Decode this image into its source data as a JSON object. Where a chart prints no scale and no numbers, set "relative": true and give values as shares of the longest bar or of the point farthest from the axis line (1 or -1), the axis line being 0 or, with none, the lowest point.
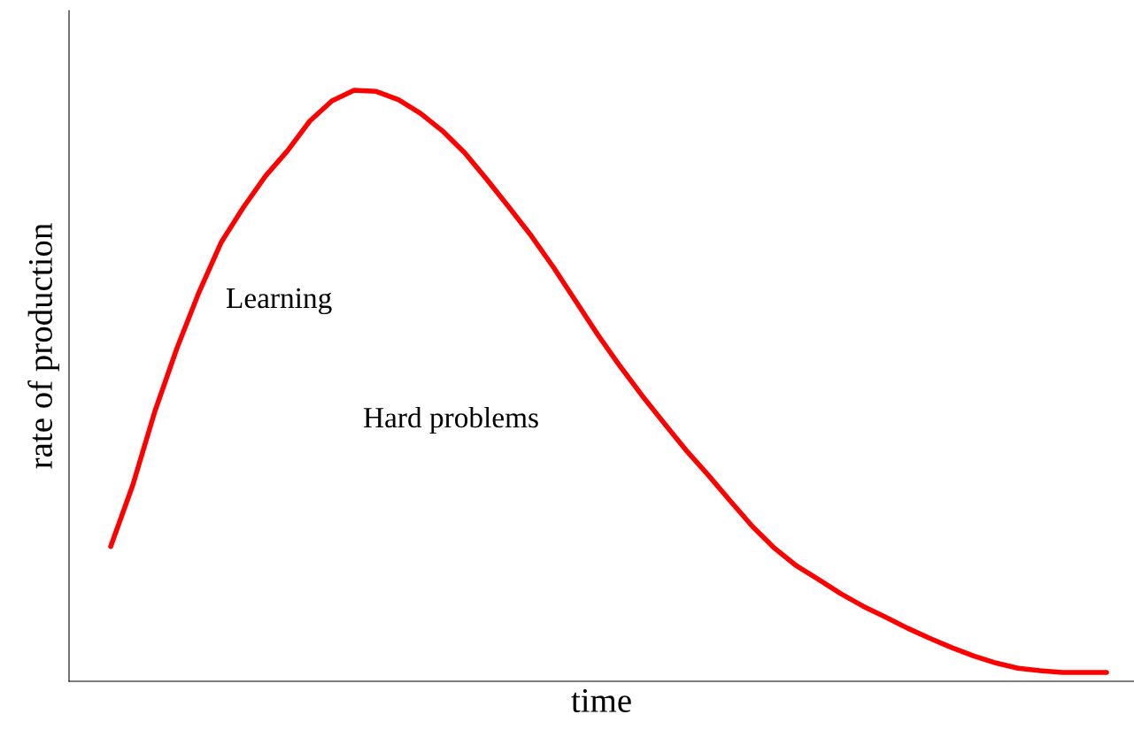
{
  "chart_data": {
    "type": "line",
    "relative": true,
    "xlabel": "time",
    "ylabel": "rate of production",
    "categories": [
      null,
      null,
      null,
      null,
      null,
      null,
      null,
      null,
      null,
      null,
      null,
      null,
      null,
      null,
      null,
      null,
      null,
      null,
      null,
      null,
      null,
      null,
      null,
      null,
      null,
      null,
      null,
      null,
      null,
      null,
      null,
      null,
      null,
      null,
      null,
      null,
      null,
      null,
      null,
      null,
      null,
      null,
      null,
      null,
      null,
      null
    ],
    "series": [
      {
        "color": "#ff0000",
        "values": [
          0.228,
          0.332,
          0.457,
          0.564,
          0.659,
          0.743,
          0.802,
          0.855,
          0.898,
          0.948,
          0.982,
          1,
          0.998,
          0.984,
          0.961,
          0.931,
          0.894,
          0.849,
          0.802,
          0.754,
          0.701,
          0.644,
          0.587,
          0.534,
          0.484,
          0.437,
          0.391,
          0.349,
          0.305,
          0.262,
          0.225,
          0.195,
          0.172,
          0.148,
          0.127,
          0.109,
          0.09,
          0.073,
          0.057,
          0.043,
          0.031,
          0.022,
          0.018,
          0.015,
          0.015,
          0.015
        ]
      }
    ],
    "annotations": [
      "Learning",
      "Hard problems"
    ],
    "grid": false,
    "legend": false,
    "marker": "none",
    "line_style": "solid"
  }
}
